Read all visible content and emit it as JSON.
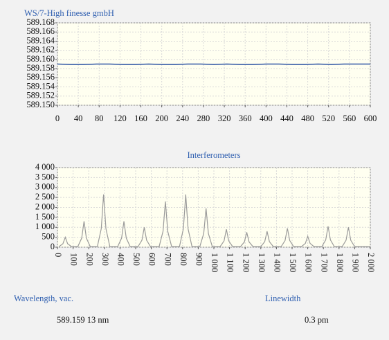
{
  "chart_data": [
    {
      "type": "line",
      "title": "WS/7-High finesse gmbH",
      "color": "#2f55a4",
      "x": [
        0,
        25,
        50,
        75,
        100,
        125,
        150,
        175,
        200,
        225,
        250,
        275,
        300,
        325,
        350,
        375,
        400,
        425,
        450,
        475,
        500,
        525,
        550,
        575,
        600
      ],
      "values": [
        589.159,
        589.1589,
        589.1589,
        589.159,
        589.159,
        589.1589,
        589.1589,
        589.159,
        589.1589,
        589.1589,
        589.159,
        589.159,
        589.1589,
        589.159,
        589.1589,
        589.1589,
        589.159,
        589.159,
        589.1589,
        589.1589,
        589.159,
        589.1589,
        589.159,
        589.159,
        589.159
      ],
      "xlim": [
        0,
        600
      ],
      "xticks": [
        0,
        40,
        80,
        120,
        160,
        200,
        240,
        280,
        320,
        360,
        400,
        440,
        480,
        520,
        560,
        600
      ],
      "ylim": [
        589.15,
        589.168
      ],
      "yticks": [
        {
          "value": 589.15,
          "label": "589.150"
        },
        589.152,
        589.154,
        589.156,
        589.158,
        {
          "value": 589.16,
          "label": "589.160"
        },
        589.162,
        589.164,
        589.166,
        589.168
      ],
      "grid": true
    },
    {
      "type": "line",
      "title": "Interferometers",
      "color": "#9a9a9a",
      "x": [
        10,
        35,
        50,
        65,
        90,
        130,
        155,
        170,
        185,
        210,
        255,
        280,
        295,
        310,
        335,
        385,
        410,
        425,
        440,
        465,
        515,
        540,
        555,
        570,
        595,
        650,
        675,
        690,
        705,
        730,
        780,
        805,
        820,
        835,
        860,
        910,
        935,
        950,
        965,
        990,
        1040,
        1065,
        1080,
        1095,
        1120,
        1170,
        1195,
        1210,
        1225,
        1250,
        1300,
        1325,
        1340,
        1355,
        1380,
        1430,
        1455,
        1470,
        1485,
        1510,
        1560,
        1585,
        1600,
        1615,
        1640,
        1690,
        1715,
        1730,
        1745,
        1770,
        1820,
        1845,
        1860,
        1875,
        1900,
        2000
      ],
      "values": [
        30,
        175,
        500,
        175,
        30,
        30,
        455,
        1300,
        455,
        30,
        30,
        928,
        2650,
        928,
        30,
        30,
        455,
        1300,
        455,
        30,
        30,
        350,
        1000,
        350,
        30,
        30,
        805,
        2300,
        805,
        30,
        30,
        928,
        2650,
        928,
        30,
        30,
        683,
        1950,
        683,
        30,
        30,
        315,
        900,
        315,
        30,
        30,
        263,
        750,
        263,
        30,
        30,
        280,
        800,
        280,
        30,
        30,
        333,
        950,
        333,
        30,
        30,
        193,
        550,
        193,
        30,
        30,
        368,
        1050,
        368,
        30,
        30,
        350,
        1000,
        350,
        30,
        30
      ],
      "xlim": [
        0,
        2000
      ],
      "xticks": [
        0,
        100,
        200,
        300,
        400,
        500,
        600,
        700,
        800,
        900,
        {
          "value": 1000,
          "label": "1 000"
        },
        {
          "value": 1100,
          "label": "1 100"
        },
        {
          "value": 1200,
          "label": "1 200"
        },
        {
          "value": 1300,
          "label": "1 300"
        },
        {
          "value": 1400,
          "label": "1 400"
        },
        {
          "value": 1500,
          "label": "1 500"
        },
        {
          "value": 1600,
          "label": "1 600"
        },
        {
          "value": 1700,
          "label": "1 700"
        },
        {
          "value": 1800,
          "label": "1 800"
        },
        {
          "value": 1900,
          "label": "1 900"
        },
        {
          "value": 2000,
          "label": "2 000"
        }
      ],
      "ylim": [
        0,
        4000
      ],
      "yticks": [
        0,
        500,
        {
          "value": 1000,
          "label": "1 000"
        },
        {
          "value": 1500,
          "label": "1 500"
        },
        {
          "value": 2000,
          "label": "2 000"
        },
        {
          "value": 2500,
          "label": "2 500"
        },
        {
          "value": 3000,
          "label": "3 000"
        },
        {
          "value": 3500,
          "label": "3 500"
        },
        {
          "value": 4000,
          "label": "4 000"
        }
      ],
      "grid": true
    }
  ],
  "readouts": {
    "wavelength_label": "Wavelength, vac.",
    "wavelength_value": "589.159 13 nm",
    "linewidth_label": "Linewidth",
    "linewidth_value": "0.3 pm"
  }
}
